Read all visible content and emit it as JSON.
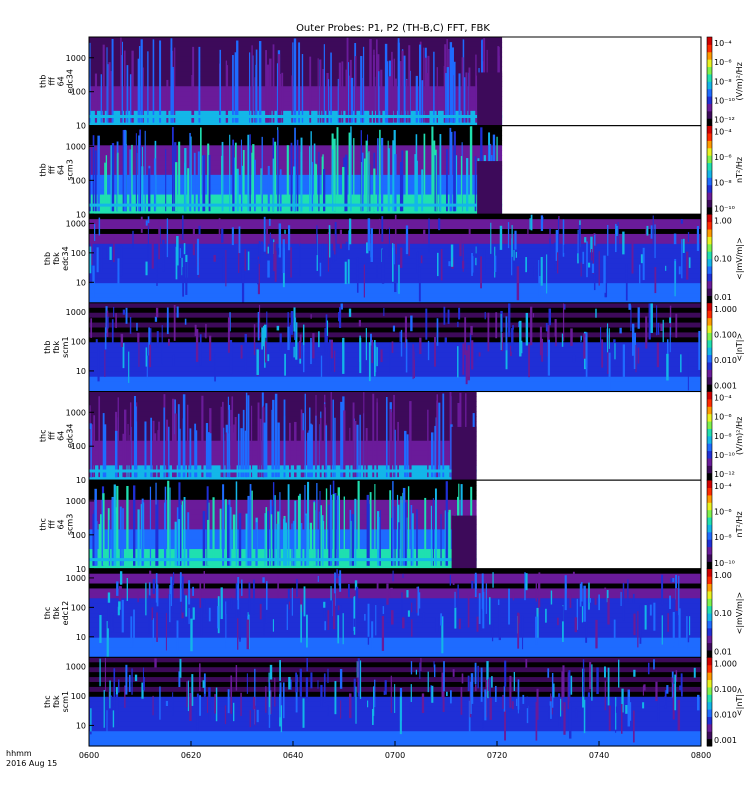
{
  "chart_data": {
    "type": "heatmap",
    "title": "Outer Probes: P1, P2 (TH-B,C) FFT, FBK",
    "x_ticks": [
      "0600",
      "0620",
      "0640",
      "0700",
      "0720",
      "0740",
      "0800"
    ],
    "x_range": [
      "06:00",
      "08:00"
    ],
    "x_units_label": "hhmm",
    "date_label": "2016 Aug 15",
    "colors": {
      "bar": [
        "#000000",
        "#3d0a5a",
        "#6a1b9a",
        "#1f2fd6",
        "#1e6bff",
        "#13b6e8",
        "#1fe0b0",
        "#7ef24a",
        "#e9f21f",
        "#ff9a00",
        "#ff2a00",
        "#d00000"
      ]
    },
    "panels": [
      {
        "ylabel": [
          "thb",
          "fff",
          "64",
          "edc34"
        ],
        "yscale": "log",
        "ylim": [
          10,
          4096
        ],
        "y_ticks": [
          "1000",
          "100",
          "10"
        ],
        "cbar_label": "(V/m)²/Hz",
        "cbar_scale": "log",
        "cbar_ticks": [
          "10⁻⁴",
          "10⁻⁶",
          "10⁻⁸",
          "10⁻¹⁰",
          "10⁻¹²"
        ],
        "data_end_time": "07:21"
      },
      {
        "ylabel": [
          "thb",
          "fff",
          "64",
          "scm3"
        ],
        "yscale": "log",
        "ylim": [
          10,
          4096
        ],
        "y_ticks": [
          "1000",
          "100",
          "10"
        ],
        "cbar_label": "nT²/Hz",
        "cbar_scale": "log",
        "cbar_ticks": [
          "10⁻⁴",
          "10⁻⁶",
          "10⁻⁸",
          "10⁻¹⁰"
        ],
        "data_end_time": "07:21"
      },
      {
        "ylabel": [
          "thb",
          "fbk",
          "edc34"
        ],
        "yscale": "log",
        "ylim": [
          2,
          2048
        ],
        "y_ticks": [
          "1000",
          "100",
          "10"
        ],
        "cbar_label": "<|mV/m|>",
        "cbar_scale": "log",
        "cbar_ticks": [
          "1.00",
          "0.10",
          "0.01"
        ],
        "data_end_time": "08:00"
      },
      {
        "ylabel": [
          "thb",
          "fbk",
          "scm1"
        ],
        "yscale": "log",
        "ylim": [
          2,
          2048
        ],
        "y_ticks": [
          "1000",
          "100",
          "10"
        ],
        "cbar_label": "<|nT|>",
        "cbar_scale": "log",
        "cbar_ticks": [
          "1.000",
          "0.100",
          "0.010",
          "0.001"
        ],
        "data_end_time": "08:00"
      },
      {
        "ylabel": [
          "thc",
          "fff",
          "64",
          "edc34"
        ],
        "yscale": "log",
        "ylim": [
          10,
          4096
        ],
        "y_ticks": [
          "1000",
          "100",
          "10"
        ],
        "cbar_label": "(V/m)²/Hz",
        "cbar_scale": "log",
        "cbar_ticks": [
          "10⁻⁴",
          "10⁻⁶",
          "10⁻⁸",
          "10⁻¹⁰",
          "10⁻¹²"
        ],
        "data_end_time": "07:16"
      },
      {
        "ylabel": [
          "thc",
          "fff",
          "64",
          "scm3"
        ],
        "yscale": "log",
        "ylim": [
          10,
          4096
        ],
        "y_ticks": [
          "1000",
          "100",
          "10"
        ],
        "cbar_label": "nT²/Hz",
        "cbar_scale": "log",
        "cbar_ticks": [
          "10⁻⁴",
          "10⁻⁶",
          "10⁻⁸",
          "10⁻¹⁰"
        ],
        "data_end_time": "07:16"
      },
      {
        "ylabel": [
          "thc",
          "fbk",
          "edc12"
        ],
        "yscale": "log",
        "ylim": [
          2,
          2048
        ],
        "y_ticks": [
          "1000",
          "100",
          "10"
        ],
        "cbar_label": "<|mV/m|>",
        "cbar_scale": "log",
        "cbar_ticks": [
          "1.00",
          "0.10",
          "0.01"
        ],
        "data_end_time": "08:00"
      },
      {
        "ylabel": [
          "thc",
          "fbk",
          "scm1"
        ],
        "yscale": "log",
        "ylim": [
          2,
          2048
        ],
        "y_ticks": [
          "1000",
          "100",
          "10"
        ],
        "cbar_label": "<|nT|>",
        "cbar_scale": "log",
        "cbar_ticks": [
          "1.000",
          "0.100",
          "0.010",
          "0.001"
        ],
        "data_end_time": "08:00"
      }
    ]
  }
}
